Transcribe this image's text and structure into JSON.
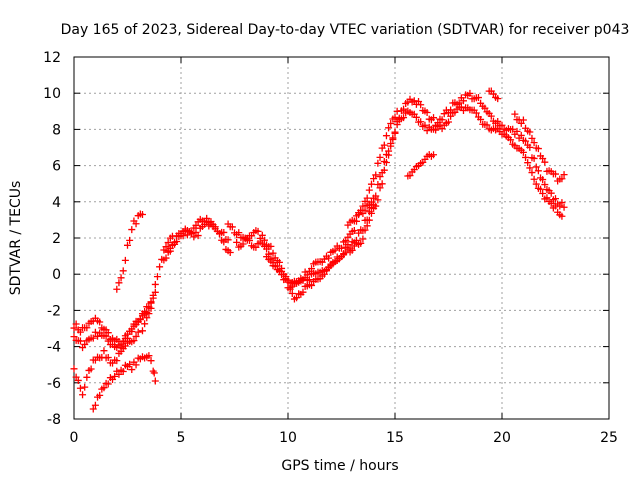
{
  "chart_data": {
    "type": "scatter",
    "title": "Day 165 of 2023, Sidereal Day-to-day VTEC variation (SDTVAR) for receiver p043",
    "xlabel": "GPS time / hours",
    "ylabel": "SDTVAR / TECUs",
    "xlim": [
      0,
      25
    ],
    "ylim": [
      -8,
      12
    ],
    "xticks": [
      "0",
      "5",
      "10",
      "15",
      "20",
      "25"
    ],
    "yticks": [
      "-8",
      "-6",
      "-4",
      "-2",
      "0",
      "2",
      "4",
      "6",
      "8",
      "10",
      "12"
    ],
    "grid": true,
    "marker": "+",
    "series_color": "#ff0000",
    "series": [
      {
        "name": "p043",
        "tracks": [
          [
            [
              0,
              -2.8
            ],
            [
              0.3,
              -3.1
            ],
            [
              0.6,
              -2.9
            ],
            [
              1.0,
              -2.5
            ],
            [
              1.4,
              -3.0
            ],
            [
              1.8,
              -3.6
            ],
            [
              2.2,
              -3.9
            ],
            [
              2.6,
              -3.2
            ],
            [
              3.0,
              -2.6
            ],
            [
              3.4,
              -2.0
            ],
            [
              3.8,
              -1.0
            ]
          ],
          [
            [
              0,
              -3.6
            ],
            [
              0.4,
              -3.9
            ],
            [
              0.8,
              -3.5
            ],
            [
              1.2,
              -3.2
            ],
            [
              1.6,
              -3.7
            ],
            [
              2.0,
              -4.0
            ],
            [
              2.4,
              -3.6
            ],
            [
              2.8,
              -3.0
            ],
            [
              3.2,
              -2.3
            ],
            [
              3.6,
              -1.6
            ]
          ],
          [
            [
              0,
              -5.3
            ],
            [
              0.2,
              -5.9
            ],
            [
              0.4,
              -6.6
            ],
            [
              0.6,
              -5.8
            ],
            [
              0.8,
              -5.1
            ],
            [
              1.0,
              -4.6
            ],
            [
              1.4,
              -4.4
            ],
            [
              1.8,
              -4.9
            ],
            [
              2.2,
              -4.4
            ],
            [
              2.6,
              -3.8
            ],
            [
              3.0,
              -3.2
            ]
          ],
          [
            [
              0.9,
              -7.3
            ],
            [
              1.2,
              -6.6
            ],
            [
              1.5,
              -6.1
            ],
            [
              1.9,
              -5.6
            ],
            [
              2.3,
              -5.2
            ],
            [
              2.7,
              -5.1
            ],
            [
              3.1,
              -4.7
            ],
            [
              3.5,
              -4.4
            ],
            [
              3.7,
              -5.2
            ],
            [
              3.8,
              -5.9
            ]
          ],
          [
            [
              2.0,
              -0.9
            ],
            [
              2.2,
              -0.2
            ],
            [
              2.4,
              0.9
            ],
            [
              2.6,
              2.0
            ],
            [
              2.8,
              2.8
            ],
            [
              3.0,
              3.1
            ],
            [
              3.2,
              3.3
            ]
          ],
          [
            [
              3.2,
              -3.3
            ],
            [
              3.4,
              -2.5
            ],
            [
              3.6,
              -1.8
            ],
            [
              3.8,
              -0.7
            ],
            [
              4.0,
              0.5
            ],
            [
              4.2,
              1.2
            ],
            [
              4.4,
              1.8
            ],
            [
              4.6,
              2.1
            ]
          ],
          [
            [
              4.2,
              0.7
            ],
            [
              4.6,
              1.7
            ],
            [
              5.0,
              2.2
            ],
            [
              5.4,
              2.3
            ],
            [
              5.8,
              2.8
            ],
            [
              6.2,
              3.1
            ],
            [
              6.6,
              2.6
            ],
            [
              7.0,
              1.7
            ],
            [
              7.3,
              1.2
            ]
          ],
          [
            [
              4.4,
              1.2
            ],
            [
              4.8,
              1.9
            ],
            [
              5.2,
              2.4
            ],
            [
              5.6,
              2.0
            ],
            [
              6.0,
              2.6
            ],
            [
              6.4,
              2.9
            ],
            [
              6.8,
              2.4
            ],
            [
              7.2,
              1.9
            ]
          ],
          [
            [
              7.2,
              2.9
            ],
            [
              7.6,
              2.2
            ],
            [
              8.0,
              1.9
            ],
            [
              8.4,
              2.4
            ],
            [
              8.8,
              2.0
            ],
            [
              9.2,
              1.5
            ],
            [
              9.6,
              0.6
            ],
            [
              10.0,
              -0.6
            ],
            [
              10.3,
              -1.2
            ],
            [
              10.7,
              -0.9
            ],
            [
              11.1,
              -0.6
            ],
            [
              11.5,
              -0.3
            ],
            [
              11.9,
              0.4
            ],
            [
              12.3,
              0.7
            ],
            [
              12.7,
              1.1
            ],
            [
              13.1,
              1.4
            ],
            [
              13.5,
              2.0
            ],
            [
              13.9,
              3.2
            ],
            [
              14.2,
              4.2
            ],
            [
              14.5,
              5.6
            ],
            [
              14.8,
              7.0
            ],
            [
              15.1,
              8.3
            ],
            [
              15.4,
              9.2
            ],
            [
              15.7,
              9.7
            ],
            [
              16.1,
              9.4
            ],
            [
              16.5,
              8.8
            ],
            [
              16.9,
              8.4
            ],
            [
              17.3,
              8.8
            ],
            [
              17.7,
              9.3
            ],
            [
              18.1,
              9.7
            ],
            [
              18.5,
              9.9
            ],
            [
              18.9,
              9.6
            ],
            [
              19.3,
              8.9
            ],
            [
              19.7,
              8.5
            ],
            [
              20.1,
              8.1
            ],
            [
              20.5,
              7.9
            ],
            [
              20.9,
              7.6
            ],
            [
              21.3,
              6.9
            ],
            [
              21.7,
              5.6
            ],
            [
              22.1,
              4.6
            ],
            [
              22.5,
              4.1
            ],
            [
              22.9,
              3.7
            ]
          ],
          [
            [
              7.6,
              1.6
            ],
            [
              8.0,
              1.8
            ],
            [
              8.4,
              1.6
            ],
            [
              8.8,
              1.8
            ],
            [
              9.2,
              1.0
            ],
            [
              9.6,
              0.2
            ],
            [
              10.0,
              -0.4
            ],
            [
              10.4,
              -0.6
            ],
            [
              10.8,
              -0.3
            ],
            [
              11.2,
              0.0
            ],
            [
              11.6,
              0.2
            ],
            [
              12.0,
              0.6
            ],
            [
              12.4,
              1.0
            ],
            [
              12.8,
              1.5
            ],
            [
              13.2,
              1.9
            ],
            [
              13.6,
              2.8
            ],
            [
              14.0,
              4.0
            ],
            [
              14.3,
              5.3
            ],
            [
              14.6,
              6.5
            ],
            [
              14.9,
              7.6
            ],
            [
              15.2,
              8.4
            ],
            [
              15.6,
              8.9
            ],
            [
              16.0,
              8.6
            ],
            [
              16.4,
              8.1
            ],
            [
              16.8,
              7.9
            ],
            [
              17.2,
              8.2
            ],
            [
              17.6,
              8.7
            ],
            [
              18.0,
              9.1
            ],
            [
              18.4,
              9.2
            ],
            [
              18.8,
              8.9
            ],
            [
              19.2,
              8.2
            ],
            [
              19.6,
              8.0
            ],
            [
              20.0,
              7.8
            ],
            [
              20.4,
              7.4
            ],
            [
              20.8,
              7.0
            ],
            [
              21.2,
              6.2
            ],
            [
              21.6,
              5.1
            ],
            [
              22.0,
              4.3
            ],
            [
              22.4,
              3.8
            ],
            [
              22.8,
              3.2
            ]
          ],
          [
            [
              9.0,
              1.1
            ],
            [
              9.4,
              0.4
            ],
            [
              9.8,
              -0.3
            ],
            [
              10.2,
              -0.7
            ],
            [
              10.6,
              -0.4
            ],
            [
              11.0,
              0.3
            ],
            [
              11.4,
              0.6
            ],
            [
              11.8,
              0.9
            ],
            [
              12.2,
              1.3
            ],
            [
              12.6,
              1.7
            ],
            [
              13.0,
              2.3
            ],
            [
              13.4,
              3.4
            ],
            [
              13.8,
              4.6
            ],
            [
              14.2,
              6.0
            ],
            [
              14.5,
              7.2
            ],
            [
              14.8,
              8.3
            ],
            [
              15.1,
              9.0
            ]
          ],
          [
            [
              12.8,
              2.8
            ],
            [
              13.2,
              3.2
            ],
            [
              13.6,
              3.6
            ],
            [
              14.0,
              4.2
            ]
          ],
          [
            [
              15.6,
              5.5
            ],
            [
              16.0,
              5.9
            ],
            [
              16.4,
              6.3
            ],
            [
              16.8,
              6.6
            ]
          ],
          [
            [
              19.4,
              10.0
            ],
            [
              19.6,
              9.9
            ],
            [
              19.8,
              9.7
            ]
          ],
          [
            [
              20.6,
              8.8
            ],
            [
              21.0,
              8.4
            ],
            [
              21.4,
              7.6
            ],
            [
              21.8,
              6.6
            ],
            [
              22.2,
              5.6
            ],
            [
              22.6,
              5.3
            ],
            [
              22.9,
              5.5
            ]
          ]
        ]
      }
    ]
  }
}
